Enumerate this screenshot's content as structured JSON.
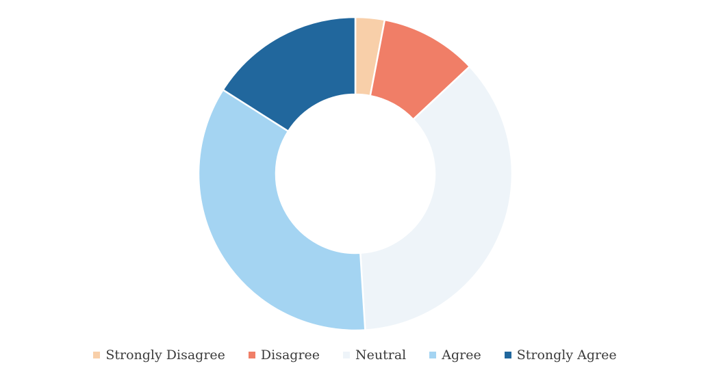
{
  "chart_data": {
    "type": "pie",
    "variant": "donut",
    "title": "",
    "categories": [
      "Strongly Disagree",
      "Disagree",
      "Neutral",
      "Agree",
      "Strongly Agree"
    ],
    "values": [
      3,
      10,
      36,
      35,
      16
    ],
    "colors": [
      "#f8cfa9",
      "#f07e67",
      "#eef4f9",
      "#a4d4f2",
      "#21679d"
    ],
    "legend_position": "bottom"
  }
}
